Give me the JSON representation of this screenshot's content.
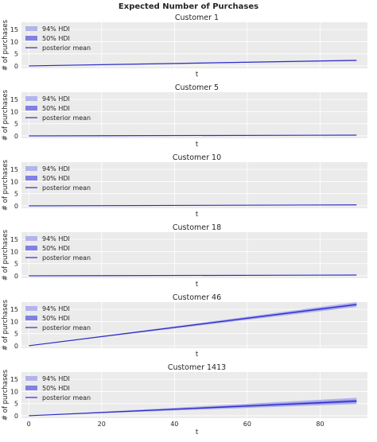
{
  "figure_title": "Expected Number of Purchases",
  "colors": {
    "panel_bg": "#ebebeb",
    "grid": "#ffffff",
    "band_94": "#b3b3ee",
    "band_50": "#8080e6",
    "mean_line": "#2d2dc8"
  },
  "chart_data": [
    {
      "type": "line",
      "title": "Customer 1",
      "xlabel": "t",
      "ylabel": "# of purchases",
      "xlim": [
        -2,
        93
      ],
      "ylim": [
        -1,
        18
      ],
      "yticks": [
        0,
        5,
        10,
        15
      ],
      "xticks": [],
      "grid": true,
      "legend": {
        "placement": "top-left",
        "entries": [
          "94% HDI",
          "50% HDI",
          "posterior mean"
        ]
      },
      "x": [
        0,
        90
      ],
      "mean": [
        0.0,
        2.3
      ],
      "hdi_50": [
        [
          0.0,
          0.0
        ],
        [
          2.15,
          2.45
        ]
      ],
      "hdi_94": [
        [
          0.0,
          0.0
        ],
        [
          2.0,
          2.6
        ]
      ]
    },
    {
      "type": "line",
      "title": "Customer 5",
      "xlabel": "t",
      "ylabel": "# of purchases",
      "xlim": [
        -2,
        93
      ],
      "ylim": [
        -1,
        18
      ],
      "yticks": [
        0,
        5,
        10,
        15
      ],
      "xticks": [],
      "grid": true,
      "legend": {
        "placement": "top-left",
        "entries": [
          "94% HDI",
          "50% HDI",
          "posterior mean"
        ]
      },
      "x": [
        0,
        90
      ],
      "mean": [
        0.0,
        0.3
      ],
      "hdi_50": [
        [
          0.0,
          0.0
        ],
        [
          0.25,
          0.35
        ]
      ],
      "hdi_94": [
        [
          0.0,
          0.0
        ],
        [
          0.2,
          0.4
        ]
      ]
    },
    {
      "type": "line",
      "title": "Customer 10",
      "xlabel": "t",
      "ylabel": "# of purchases",
      "xlim": [
        -2,
        93
      ],
      "ylim": [
        -1,
        18
      ],
      "yticks": [
        0,
        5,
        10,
        15
      ],
      "xticks": [],
      "grid": true,
      "legend": {
        "placement": "top-left",
        "entries": [
          "94% HDI",
          "50% HDI",
          "posterior mean"
        ]
      },
      "x": [
        0,
        90
      ],
      "mean": [
        0.0,
        0.4
      ],
      "hdi_50": [
        [
          0.0,
          0.0
        ],
        [
          0.35,
          0.45
        ]
      ],
      "hdi_94": [
        [
          0.0,
          0.0
        ],
        [
          0.3,
          0.5
        ]
      ]
    },
    {
      "type": "line",
      "title": "Customer 18",
      "xlabel": "t",
      "ylabel": "# of purchases",
      "xlim": [
        -2,
        93
      ],
      "ylim": [
        -1,
        18
      ],
      "yticks": [
        0,
        5,
        10,
        15
      ],
      "xticks": [],
      "grid": true,
      "legend": {
        "placement": "top-left",
        "entries": [
          "94% HDI",
          "50% HDI",
          "posterior mean"
        ]
      },
      "x": [
        0,
        90
      ],
      "mean": [
        0.0,
        0.3
      ],
      "hdi_50": [
        [
          0.0,
          0.0
        ],
        [
          0.25,
          0.35
        ]
      ],
      "hdi_94": [
        [
          0.0,
          0.0
        ],
        [
          0.2,
          0.4
        ]
      ]
    },
    {
      "type": "line",
      "title": "Customer 46",
      "xlabel": "t",
      "ylabel": "# of purchases",
      "xlim": [
        -2,
        93
      ],
      "ylim": [
        -1,
        18
      ],
      "yticks": [
        0,
        5,
        10,
        15
      ],
      "xticks": [],
      "grid": true,
      "legend": {
        "placement": "top-left",
        "entries": [
          "94% HDI",
          "50% HDI",
          "posterior mean"
        ]
      },
      "x": [
        0,
        90
      ],
      "mean": [
        0.0,
        17.0
      ],
      "hdi_50": [
        [
          0.0,
          0.0
        ],
        [
          16.6,
          17.4
        ]
      ],
      "hdi_94": [
        [
          0.0,
          0.0
        ],
        [
          16.0,
          18.0
        ]
      ]
    },
    {
      "type": "line",
      "title": "Customer 1413",
      "xlabel": "t",
      "ylabel": "# of purchases",
      "xlim": [
        -2,
        93
      ],
      "ylim": [
        -1,
        18
      ],
      "yticks": [
        0,
        5,
        10,
        15
      ],
      "xticks": [
        0,
        20,
        40,
        60,
        80
      ],
      "grid": true,
      "legend": {
        "placement": "top-left",
        "entries": [
          "94% HDI",
          "50% HDI",
          "posterior mean"
        ]
      },
      "x": [
        0,
        90
      ],
      "mean": [
        0.0,
        6.0
      ],
      "hdi_50": [
        [
          0.0,
          0.0
        ],
        [
          5.5,
          6.6
        ]
      ],
      "hdi_94": [
        [
          0.0,
          0.0
        ],
        [
          4.8,
          7.4
        ]
      ]
    }
  ]
}
